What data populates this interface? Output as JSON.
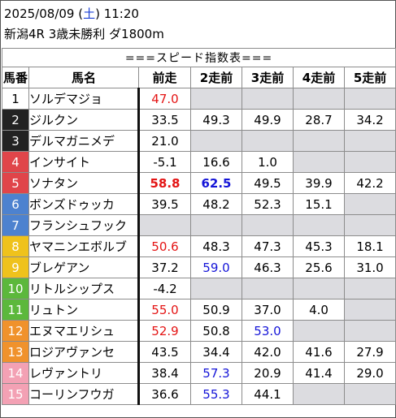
{
  "header": {
    "date_prefix": "2025/08/09 (",
    "weekday": "土",
    "time_suffix": ") 11:20",
    "race_line": "新潟4R 3歳未勝利 ダ1800m"
  },
  "table": {
    "title": "===スピード指数表===",
    "columns": [
      "馬番",
      "馬名",
      "前走",
      "2走前",
      "3走前",
      "4走前",
      "5走前"
    ],
    "frame_colors": {
      "1": "#ffffff",
      "2": "#222222",
      "3": "#222222",
      "4": "#e0454a",
      "5": "#e0454a",
      "6": "#4d82cf",
      "7": "#4d82cf",
      "8": "#efc21c",
      "9": "#efc21c",
      "10": "#5cb83c",
      "11": "#5cb83c",
      "12": "#f0922c",
      "13": "#f0922c",
      "14": "#f3a1b4",
      "15": "#f3a1b4"
    },
    "rows": [
      {
        "no": "1",
        "name": "ソルデマジョ",
        "v": [
          "47.0",
          "",
          "",
          "",
          ""
        ],
        "c": [
          "red",
          "",
          "",
          "",
          ""
        ]
      },
      {
        "no": "2",
        "name": "ジルクン",
        "v": [
          "33.5",
          "49.3",
          "49.9",
          "28.7",
          "34.2"
        ],
        "c": [
          "",
          "",
          "",
          "",
          ""
        ]
      },
      {
        "no": "3",
        "name": "デルマガニメデ",
        "v": [
          "21.0",
          "",
          "",
          "",
          ""
        ],
        "c": [
          "",
          "",
          "",
          "",
          ""
        ]
      },
      {
        "no": "4",
        "name": "インサイト",
        "v": [
          "-5.1",
          "16.6",
          "1.0",
          "",
          ""
        ],
        "c": [
          "",
          "",
          "",
          "",
          ""
        ]
      },
      {
        "no": "5",
        "name": "ソナタン",
        "v": [
          "58.8",
          "62.5",
          "49.5",
          "39.9",
          "42.2"
        ],
        "c": [
          "red bold",
          "blue bold",
          "",
          "",
          ""
        ]
      },
      {
        "no": "6",
        "name": "ボンズドゥッカ",
        "v": [
          "39.5",
          "48.2",
          "52.3",
          "15.1",
          ""
        ],
        "c": [
          "",
          "",
          "",
          "",
          ""
        ]
      },
      {
        "no": "7",
        "name": "フランシュフック",
        "v": [
          "",
          "",
          "",
          "",
          ""
        ],
        "c": [
          "",
          "",
          "",
          "",
          ""
        ]
      },
      {
        "no": "8",
        "name": "ヤマニンエボルブ",
        "v": [
          "50.6",
          "48.3",
          "47.3",
          "45.3",
          "18.1"
        ],
        "c": [
          "red",
          "",
          "",
          "",
          ""
        ]
      },
      {
        "no": "9",
        "name": "ブレゲアン",
        "v": [
          "37.2",
          "59.0",
          "46.3",
          "25.6",
          "31.0"
        ],
        "c": [
          "",
          "blue",
          "",
          "",
          ""
        ]
      },
      {
        "no": "10",
        "name": "リトルシップス",
        "v": [
          "-4.2",
          "",
          "",
          "",
          ""
        ],
        "c": [
          "",
          "",
          "",
          "",
          ""
        ]
      },
      {
        "no": "11",
        "name": "リュトン",
        "v": [
          "55.0",
          "50.9",
          "37.0",
          "4.0",
          ""
        ],
        "c": [
          "red",
          "",
          "",
          "",
          ""
        ]
      },
      {
        "no": "12",
        "name": "エヌマエリシュ",
        "v": [
          "52.9",
          "50.8",
          "53.0",
          "",
          ""
        ],
        "c": [
          "red",
          "",
          "blue",
          "",
          ""
        ]
      },
      {
        "no": "13",
        "name": "ロジアヴァンセ",
        "v": [
          "43.5",
          "34.4",
          "42.0",
          "41.6",
          "27.9"
        ],
        "c": [
          "",
          "",
          "",
          "",
          ""
        ]
      },
      {
        "no": "14",
        "name": "レヴァントリ",
        "v": [
          "38.4",
          "57.3",
          "20.9",
          "41.4",
          "29.0"
        ],
        "c": [
          "",
          "blue",
          "",
          "",
          ""
        ]
      },
      {
        "no": "15",
        "name": "コーリンフウガ",
        "v": [
          "36.6",
          "55.3",
          "44.1",
          "",
          ""
        ],
        "c": [
          "",
          "blue",
          "",
          "",
          ""
        ]
      }
    ]
  }
}
